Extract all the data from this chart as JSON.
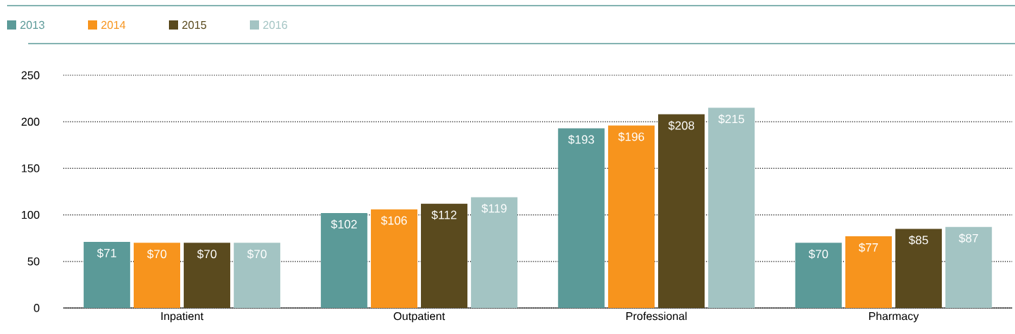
{
  "chart_data": {
    "type": "bar",
    "categories": [
      "Inpatient",
      "Outpatient",
      "Professional",
      "Pharmacy"
    ],
    "series": [
      {
        "name": "2013",
        "color": "#5b9a98",
        "values": [
          71,
          102,
          193,
          70
        ],
        "value_labels": [
          "$71",
          "$102",
          "$193",
          "$70"
        ]
      },
      {
        "name": "2014",
        "color": "#f7941d",
        "values": [
          70,
          106,
          196,
          77
        ],
        "value_labels": [
          "$70",
          "$106",
          "$196",
          "$77"
        ]
      },
      {
        "name": "2015",
        "color": "#5a4a1e",
        "values": [
          70,
          112,
          208,
          85
        ],
        "value_labels": [
          "$70",
          "$112",
          "$208",
          "$85"
        ]
      },
      {
        "name": "2016",
        "color": "#a3c4c3",
        "values": [
          70,
          119,
          215,
          87
        ],
        "value_labels": [
          "$70",
          "$119",
          "$215",
          "$87"
        ]
      }
    ],
    "ylim": [
      0,
      250
    ],
    "yticks": [
      0,
      50,
      100,
      150,
      200,
      250
    ],
    "grid": "y",
    "legend": "top left"
  }
}
